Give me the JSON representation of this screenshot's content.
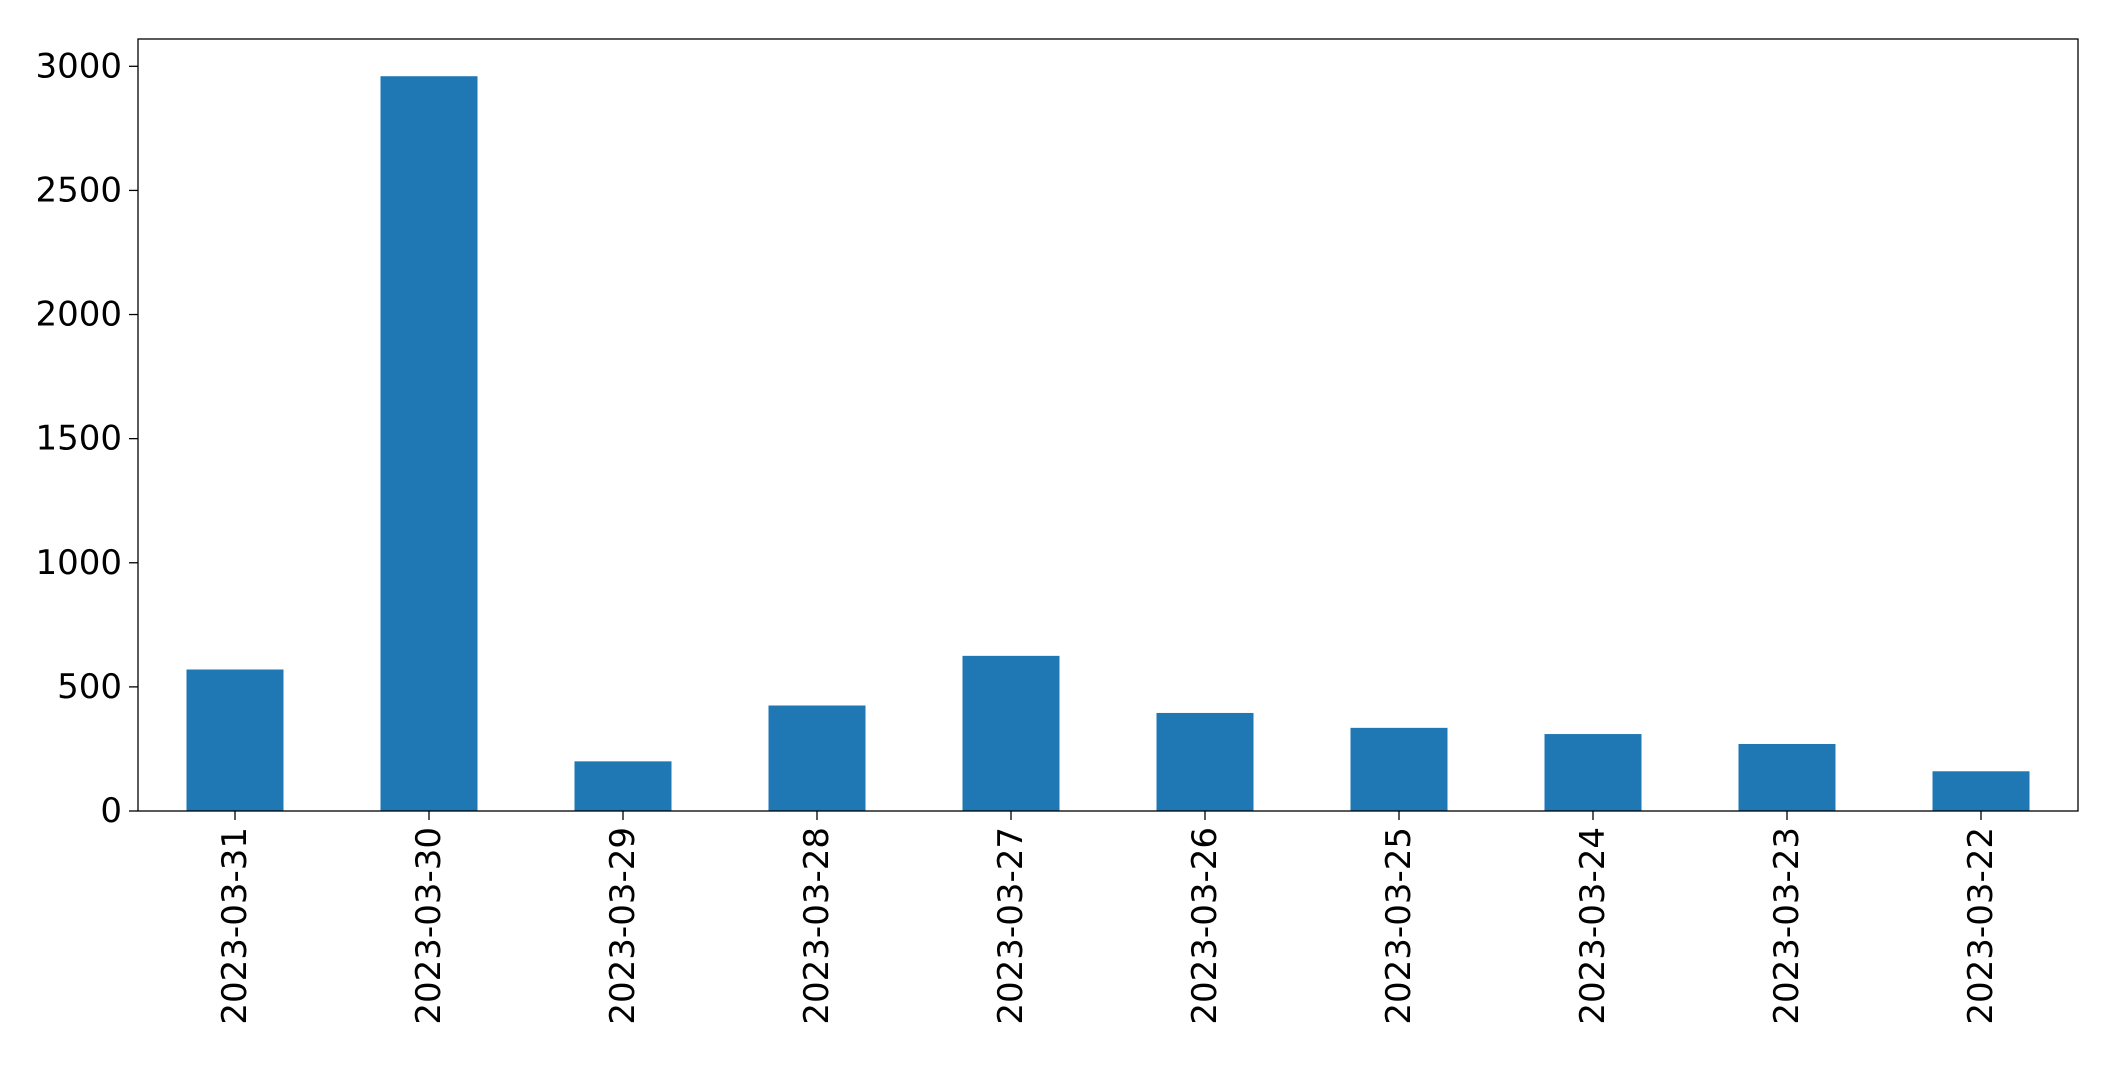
{
  "chart_data": {
    "type": "bar",
    "categories": [
      "2023-03-31",
      "2023-03-30",
      "2023-03-29",
      "2023-03-28",
      "2023-03-27",
      "2023-03-26",
      "2023-03-25",
      "2023-03-24",
      "2023-03-23",
      "2023-03-22"
    ],
    "values": [
      570,
      2960,
      200,
      425,
      625,
      395,
      335,
      310,
      270,
      160
    ],
    "title": "",
    "xlabel": "",
    "ylabel": "",
    "ylim": [
      0,
      3110
    ],
    "yticks": [
      0,
      500,
      1000,
      1500,
      2000,
      2500,
      3000
    ],
    "bar_color": "#1f77b4",
    "grid": false,
    "x_tick_rotation": "vertical"
  }
}
